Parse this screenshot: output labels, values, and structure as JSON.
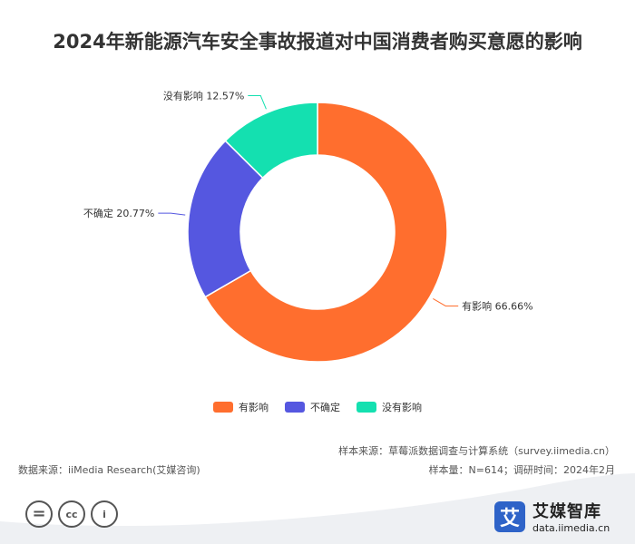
{
  "chart_data": {
    "type": "pie",
    "title": "2024年新能源汽车安全事故报道对中国消费者购买意愿的影响",
    "donut": true,
    "slices": [
      {
        "name": "有影响",
        "value": 66.66,
        "label": "有影响 66.66%",
        "color": "#ff6e2e"
      },
      {
        "name": "不确定",
        "value": 20.77,
        "label": "不确定 20.77%",
        "color": "#5557e0"
      },
      {
        "name": "没有影响",
        "value": 12.57,
        "label": "没有影响 12.57%",
        "color": "#14e0b0"
      }
    ],
    "legend": [
      "有影响",
      "不确定",
      "没有影响"
    ],
    "legend_position": "bottom"
  },
  "footer": {
    "source": "数据来源：iiMedia Research(艾媒咨询)",
    "sample_source": "样本来源：草莓派数据调查与计算系统（survey.iimedia.cn）",
    "sample_info": "样本量：N=614；调研时间：2024年2月"
  },
  "license_icons": [
    "=",
    "cc",
    "i"
  ],
  "logo": {
    "mark": "艾",
    "name": "艾媒智库",
    "url": "data.iimedia.cn"
  }
}
